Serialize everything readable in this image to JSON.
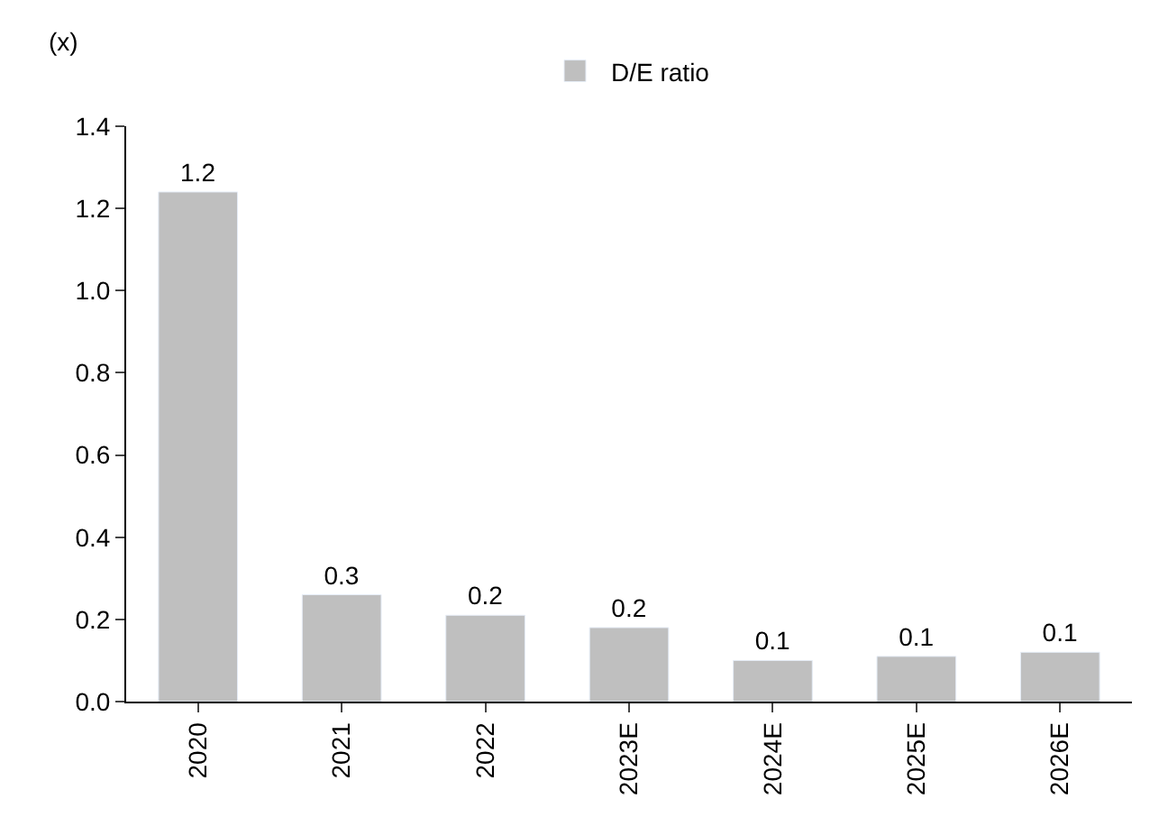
{
  "chart_data": {
    "type": "bar",
    "ylabel": "(x)",
    "categories": [
      "2020",
      "2021",
      "2022",
      "2023E",
      "2024E",
      "2025E",
      "2026E"
    ],
    "series": [
      {
        "name": "D/E ratio",
        "color": "#bfbfbf",
        "values": [
          1.24,
          0.26,
          0.21,
          0.18,
          0.1,
          0.11,
          0.12
        ],
        "value_labels": [
          "1.2",
          "0.3",
          "0.2",
          "0.2",
          "0.1",
          "0.1",
          "0.1"
        ]
      }
    ],
    "ylim": [
      0,
      1.4
    ],
    "yticks": [
      "0.0",
      "0.2",
      "0.4",
      "0.6",
      "0.8",
      "1.0",
      "1.2",
      "1.4"
    ],
    "legend": "top"
  }
}
